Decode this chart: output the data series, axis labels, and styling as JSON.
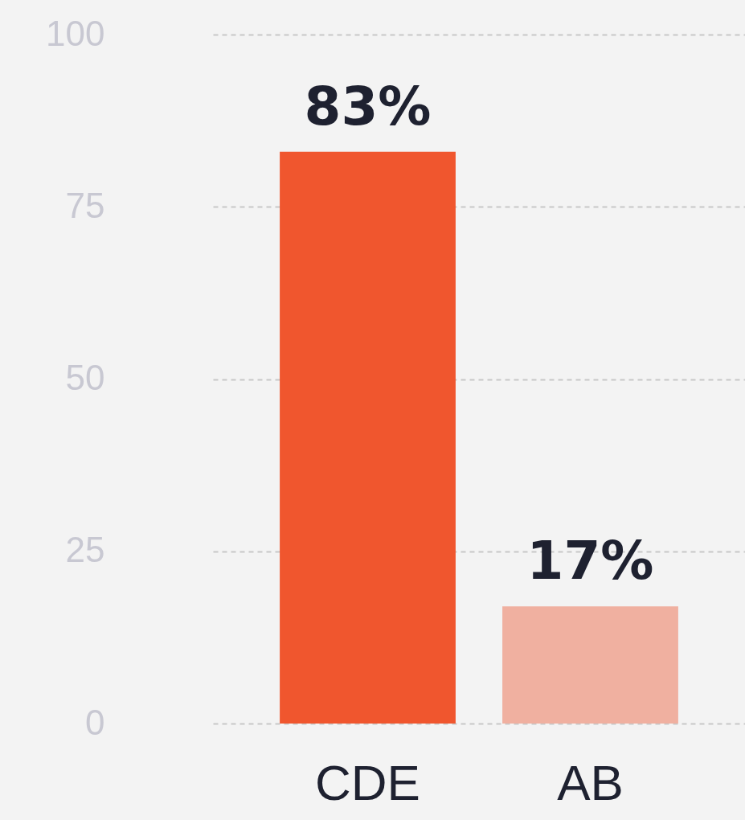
{
  "chart_data": {
    "type": "bar",
    "categories": [
      "CDE",
      "AB"
    ],
    "values": [
      83,
      17
    ],
    "colors": [
      "#f0562e",
      "#f0b0a0"
    ],
    "value_labels": [
      "83%",
      "17%"
    ],
    "ylim": [
      0,
      100
    ],
    "yticks": [
      0,
      25,
      50,
      75,
      100
    ],
    "grid": "y"
  }
}
